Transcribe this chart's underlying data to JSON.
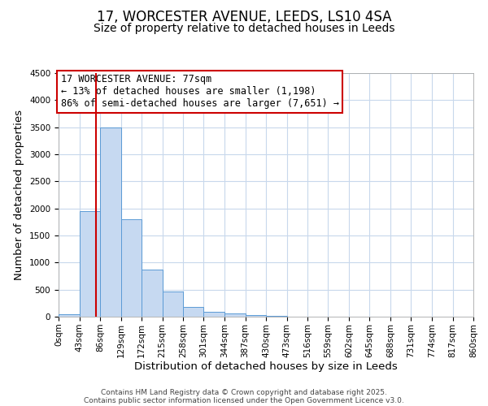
{
  "title": "17, WORCESTER AVENUE, LEEDS, LS10 4SA",
  "subtitle": "Size of property relative to detached houses in Leeds",
  "xlabel": "Distribution of detached houses by size in Leeds",
  "ylabel": "Number of detached properties",
  "bar_color": "#c6d9f1",
  "bar_edge_color": "#5b9bd5",
  "background_color": "#ffffff",
  "grid_color": "#c8d8ec",
  "bin_edges": [
    0,
    43,
    86,
    129,
    172,
    215,
    258,
    301,
    344,
    387,
    430,
    473,
    516,
    559,
    602,
    645,
    688,
    731,
    774,
    817,
    860
  ],
  "bar_heights": [
    40,
    1950,
    3500,
    1800,
    870,
    460,
    175,
    90,
    55,
    30,
    10,
    3,
    0,
    0,
    0,
    0,
    0,
    0,
    0,
    0
  ],
  "ylim": [
    0,
    4500
  ],
  "yticks": [
    0,
    500,
    1000,
    1500,
    2000,
    2500,
    3000,
    3500,
    4000,
    4500
  ],
  "property_size": 77,
  "red_line_color": "#cc0000",
  "annotation_title": "17 WORCESTER AVENUE: 77sqm",
  "annotation_line1": "← 13% of detached houses are smaller (1,198)",
  "annotation_line2": "86% of semi-detached houses are larger (7,651) →",
  "annotation_box_color": "#ffffff",
  "annotation_box_edge": "#cc0000",
  "footer_line1": "Contains HM Land Registry data © Crown copyright and database right 2025.",
  "footer_line2": "Contains public sector information licensed under the Open Government Licence v3.0.",
  "title_fontsize": 12,
  "subtitle_fontsize": 10,
  "tick_label_fontsize": 7.5,
  "axis_label_fontsize": 9.5,
  "annotation_fontsize": 8.5,
  "footer_fontsize": 6.5
}
